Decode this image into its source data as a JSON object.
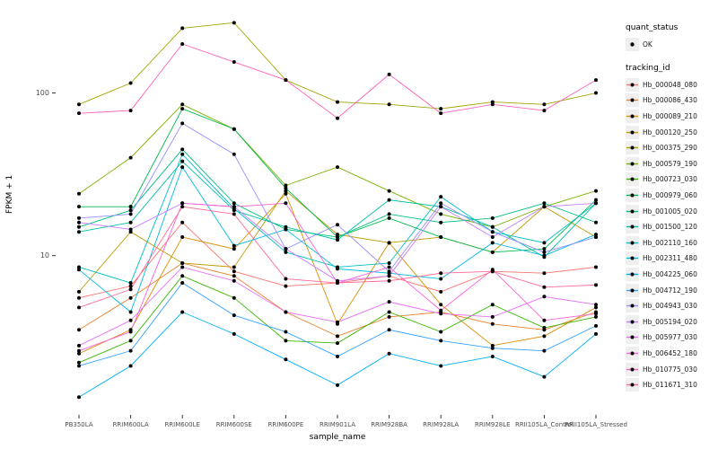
{
  "chart_data": {
    "type": "line",
    "title": "",
    "xlabel": "sample_name",
    "ylabel": "FPKM + 1",
    "yscale": "log10",
    "ylim": [
      1.05,
      320
    ],
    "yticks": [
      100,
      10
    ],
    "grid": false,
    "legend_position": "right",
    "point_color": "#000000",
    "categories": [
      "PB350LA",
      "RRIM600LA",
      "RRIM600LE",
      "RRIM600SE",
      "RRIM600PE",
      "RRIM901LA",
      "RRIM928BA",
      "RRIM928LA",
      "RRIM928LE",
      "RRII105LA_Control",
      "RRII105LA_Stressed"
    ],
    "series": [
      {
        "name": "Hb_000048_080",
        "color": "#F8766D",
        "values": [
          5.5,
          6.5,
          16,
          8,
          6.5,
          6.8,
          7.5,
          6,
          8,
          7.8,
          8.5
        ]
      },
      {
        "name": "Hb_000086_430",
        "color": "#EA8331",
        "values": [
          3.5,
          5.5,
          9,
          7.5,
          4.5,
          3.2,
          4.2,
          4.5,
          3.8,
          3.5,
          4.5
        ]
      },
      {
        "name": "Hb_000089_210",
        "color": "#D89000",
        "values": [
          2.5,
          3.5,
          13,
          11,
          24,
          3.8,
          12,
          5,
          2.8,
          3.2,
          4.8
        ]
      },
      {
        "name": "Hb_000120_250",
        "color": "#C09B00",
        "values": [
          6,
          14,
          9,
          8.5,
          25,
          13.5,
          12,
          13,
          10.5,
          20,
          13
        ]
      },
      {
        "name": "Hb_000375_290",
        "color": "#A3A500",
        "values": [
          85,
          115,
          250,
          270,
          120,
          88,
          85,
          80,
          88,
          85,
          100
        ]
      },
      {
        "name": "Hb_000579_190",
        "color": "#7CAE00",
        "values": [
          24,
          40,
          85,
          60,
          27,
          35,
          25,
          18,
          15,
          20,
          25
        ]
      },
      {
        "name": "Hb_000723_030",
        "color": "#39B600",
        "values": [
          2.2,
          3.0,
          7.5,
          5.5,
          3.0,
          2.9,
          4.5,
          3.4,
          5.0,
          3.6,
          4.2
        ]
      },
      {
        "name": "Hb_000979_060",
        "color": "#00BB4E",
        "values": [
          20,
          20,
          80,
          60,
          26,
          13,
          17,
          13,
          10.5,
          11,
          22
        ]
      },
      {
        "name": "Hb_001005_020",
        "color": "#00BF7D",
        "values": [
          15,
          19,
          45,
          21,
          14.5,
          13,
          18,
          16,
          17,
          21,
          16
        ]
      },
      {
        "name": "Hb_001500_120",
        "color": "#00C1A3",
        "values": [
          14,
          16,
          38,
          19,
          15,
          12.5,
          22,
          20,
          15,
          9.8,
          21
        ]
      },
      {
        "name": "Hb_002110_160",
        "color": "#00BFC4",
        "values": [
          8.5,
          6.8,
          42,
          19.5,
          10.5,
          8.5,
          9,
          23,
          14,
          12,
          21
        ]
      },
      {
        "name": "Hb_002311_480",
        "color": "#00BAE0",
        "values": [
          8.2,
          4.5,
          35,
          11.5,
          14.5,
          8.3,
          7.8,
          7.2,
          12,
          10,
          13.5
        ]
      },
      {
        "name": "Hb_004225_060",
        "color": "#00B0F6",
        "values": [
          1.35,
          2.1,
          4.5,
          3.3,
          2.3,
          1.6,
          2.5,
          2.1,
          2.4,
          1.8,
          3.3
        ]
      },
      {
        "name": "Hb_004712_190",
        "color": "#35A2FF",
        "values": [
          2.1,
          2.6,
          6.8,
          4.3,
          3.4,
          2.4,
          3.5,
          3.0,
          2.7,
          2.6,
          3.7
        ]
      },
      {
        "name": "Hb_004943_030",
        "color": "#9590FF",
        "values": [
          17,
          18,
          65,
          42,
          11,
          15.5,
          8,
          21,
          14,
          10.5,
          13
        ]
      },
      {
        "name": "Hb_005194_020",
        "color": "#C77CFF",
        "values": [
          16,
          14.5,
          21,
          20,
          11,
          7,
          7.5,
          20,
          13,
          20,
          21
        ]
      },
      {
        "name": "Hb_005977_030",
        "color": "#E76BF3",
        "values": [
          2.8,
          4.0,
          8.5,
          7.0,
          4.5,
          3.9,
          5.2,
          4.4,
          4.2,
          5.6,
          5.0
        ]
      },
      {
        "name": "Hb_006452_180",
        "color": "#FA62DB",
        "values": [
          2.6,
          3.4,
          21,
          20,
          21,
          6.8,
          8.5,
          4.6,
          8.2,
          4.0,
          4.4
        ]
      },
      {
        "name": "Hb_010775_030",
        "color": "#FF62BC",
        "values": [
          75,
          78,
          200,
          155,
          120,
          70,
          130,
          75,
          85,
          78,
          120
        ]
      },
      {
        "name": "Hb_011671_310",
        "color": "#FF6A98",
        "values": [
          4.8,
          6.2,
          20,
          18,
          7.2,
          6.8,
          7.0,
          7.8,
          8.0,
          6.4,
          6.6
        ]
      }
    ]
  },
  "legend": {
    "quant_status": {
      "title": "quant_status",
      "items": [
        {
          "label": "OK"
        }
      ]
    },
    "tracking_id": {
      "title": "tracking_id"
    }
  }
}
